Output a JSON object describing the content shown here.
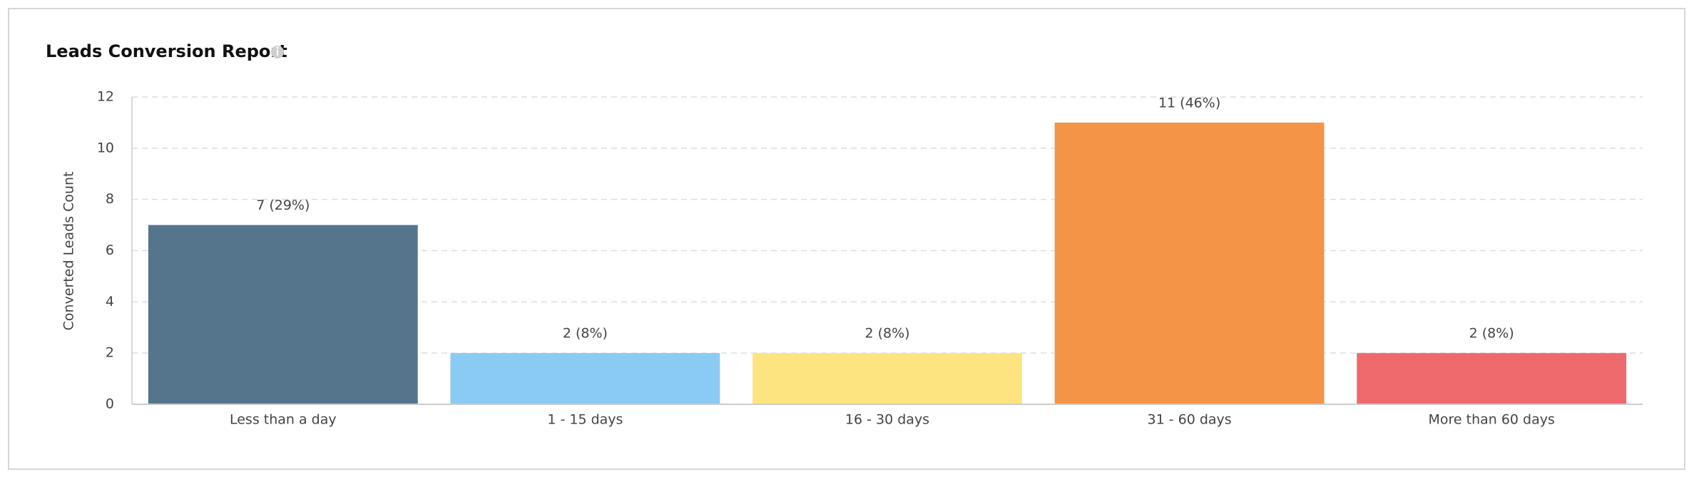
{
  "chart_data": {
    "type": "bar",
    "title": "Leads Conversion Report",
    "y_label": "Converted Leads Count",
    "categories": [
      "Less than a day",
      "1 - 15 days",
      "16 - 30 days",
      "31 - 60 days",
      "More than 60 days"
    ],
    "values": [
      7,
      2,
      2,
      11,
      2
    ],
    "value_labels": [
      "7 (29%)",
      "2 (8%)",
      "2 (8%)",
      "11 (46%)",
      "2 (8%)"
    ],
    "colors": [
      "#55758d",
      "#8acbf3",
      "#fee480",
      "#f39447",
      "#ef6a6c"
    ],
    "ylim": [
      0,
      12
    ],
    "yticks": [
      0,
      2,
      4,
      6,
      8,
      10,
      12
    ],
    "grid": true
  }
}
